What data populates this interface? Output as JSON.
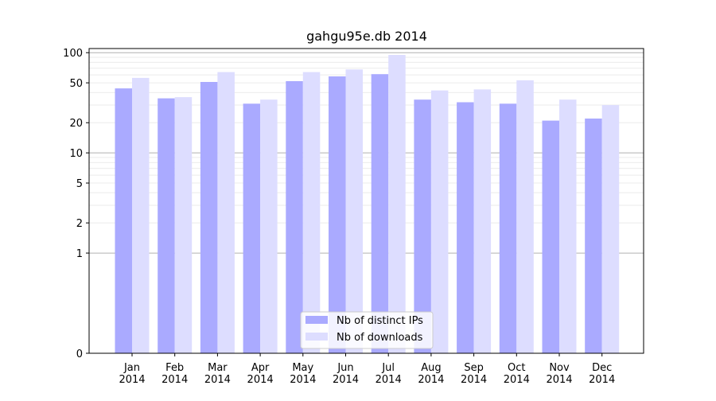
{
  "chart_data": {
    "type": "bar",
    "title": "gahgu95e.db 2014",
    "xlabel": "",
    "ylabel": "",
    "y_scale": "symlog",
    "ylim": [
      0,
      110
    ],
    "categories": [
      {
        "month": "Jan",
        "year": "2014"
      },
      {
        "month": "Feb",
        "year": "2014"
      },
      {
        "month": "Mar",
        "year": "2014"
      },
      {
        "month": "Apr",
        "year": "2014"
      },
      {
        "month": "May",
        "year": "2014"
      },
      {
        "month": "Jun",
        "year": "2014"
      },
      {
        "month": "Jul",
        "year": "2014"
      },
      {
        "month": "Aug",
        "year": "2014"
      },
      {
        "month": "Sep",
        "year": "2014"
      },
      {
        "month": "Oct",
        "year": "2014"
      },
      {
        "month": "Nov",
        "year": "2014"
      },
      {
        "month": "Dec",
        "year": "2014"
      }
    ],
    "series": [
      {
        "name": "Nb of distinct IPs",
        "color": "#aaaaff",
        "values": [
          44,
          35,
          51,
          31,
          52,
          58,
          61,
          34,
          32,
          31,
          21,
          22
        ]
      },
      {
        "name": "Nb of downloads",
        "color": "#ddddff",
        "values": [
          56,
          36,
          64,
          34,
          64,
          68,
          95,
          42,
          43,
          53,
          34,
          30
        ]
      }
    ],
    "yticks": [
      0,
      1,
      2,
      5,
      10,
      20,
      50,
      100
    ],
    "grid": true,
    "legend_position": "lower-center"
  }
}
